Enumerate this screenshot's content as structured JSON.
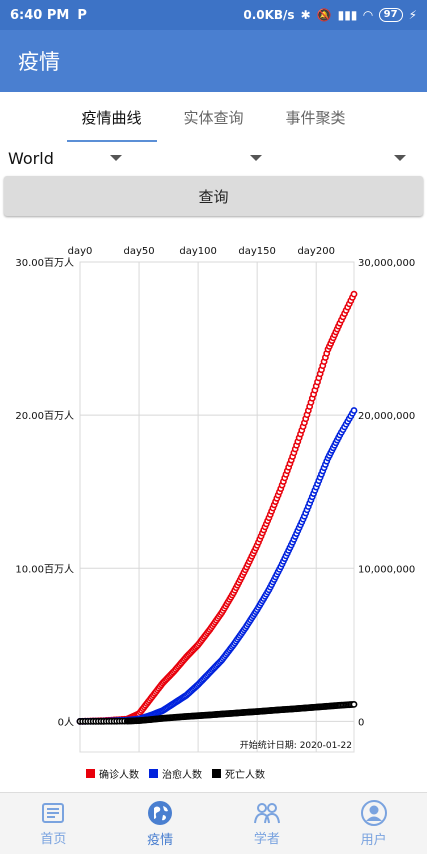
{
  "status_bar": {
    "time": "6:40 PM",
    "pay_icon": "P",
    "speed": "0.0KB/s",
    "battery": "97"
  },
  "app_bar": {
    "title": "疫情"
  },
  "tabs": [
    {
      "label": "疫情曲线",
      "active": true
    },
    {
      "label": "实体查询",
      "active": false
    },
    {
      "label": "事件聚类",
      "active": false
    }
  ],
  "selectors": {
    "region": "World",
    "second": "",
    "third": ""
  },
  "query_button": {
    "label": "查询"
  },
  "chart_data": {
    "type": "line",
    "x_ticks": [
      "day0",
      "day50",
      "day100",
      "day150",
      "day200"
    ],
    "x_tick_values": [
      0,
      50,
      100,
      150,
      200
    ],
    "x_range": [
      0,
      232
    ],
    "left_axis": {
      "ticks": [
        "0人",
        "10.00百万人",
        "20.00百万人",
        "30.00百万人"
      ],
      "tick_values": [
        0,
        10000000,
        20000000,
        30000000
      ]
    },
    "right_axis": {
      "ticks": [
        "0",
        "10,000,000",
        "20,000,000",
        "30,000,000"
      ],
      "tick_values": [
        0,
        10000000,
        20000000,
        30000000
      ]
    },
    "ylim": [
      -2000000,
      30000000
    ],
    "annotation": "开始统计日期:   2020-01-22",
    "legend": [
      "确诊人数",
      "治愈人数",
      "死亡人数"
    ],
    "series": [
      {
        "name": "确诊人数",
        "color": "#e8000b",
        "x": [
          0,
          20,
          40,
          50,
          60,
          70,
          80,
          90,
          100,
          110,
          120,
          130,
          140,
          150,
          160,
          170,
          180,
          190,
          200,
          210,
          220,
          232
        ],
        "values": [
          0,
          50000,
          150000,
          500000,
          1500000,
          2500000,
          3300000,
          4200000,
          5000000,
          6000000,
          7100000,
          8400000,
          9900000,
          11500000,
          13300000,
          15200000,
          17300000,
          19500000,
          21900000,
          24300000,
          26000000,
          27900000
        ]
      },
      {
        "name": "治愈人数",
        "color": "#0022dd",
        "x": [
          0,
          20,
          40,
          50,
          60,
          70,
          80,
          90,
          100,
          110,
          120,
          130,
          140,
          150,
          160,
          170,
          180,
          190,
          200,
          210,
          220,
          232
        ],
        "values": [
          0,
          20000,
          80000,
          150000,
          400000,
          700000,
          1200000,
          1700000,
          2400000,
          3200000,
          4000000,
          5000000,
          6100000,
          7300000,
          8600000,
          10100000,
          11700000,
          13400000,
          15300000,
          17200000,
          18700000,
          20300000
        ]
      },
      {
        "name": "死亡人数",
        "color": "#000000",
        "x": [
          0,
          20,
          40,
          50,
          60,
          70,
          80,
          90,
          100,
          110,
          120,
          130,
          140,
          150,
          160,
          170,
          180,
          190,
          200,
          210,
          220,
          232
        ],
        "values": [
          0,
          5000,
          20000,
          50000,
          120000,
          200000,
          260000,
          320000,
          370000,
          420000,
          480000,
          530000,
          590000,
          640000,
          700000,
          760000,
          810000,
          870000,
          930000,
          990000,
          1050000,
          1110000
        ]
      }
    ]
  },
  "bottom_nav": [
    {
      "label": "首页",
      "icon": "newspaper-icon",
      "active": false
    },
    {
      "label": "疫情",
      "icon": "globe-icon",
      "active": true
    },
    {
      "label": "学者",
      "icon": "people-icon",
      "active": false
    },
    {
      "label": "用户",
      "icon": "user-icon",
      "active": false
    }
  ]
}
